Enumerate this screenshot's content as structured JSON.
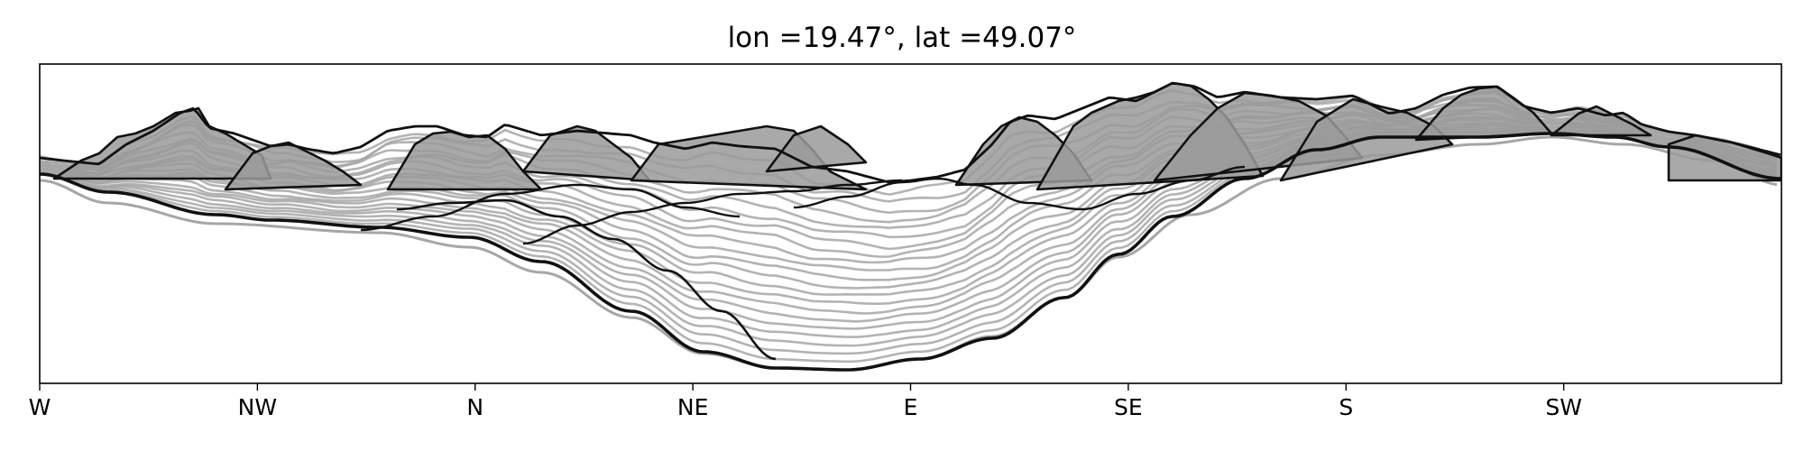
{
  "chart_data": {
    "type": "line",
    "title": "lon =19.47°, lat =49.07°",
    "xlabel": "",
    "ylabel": "",
    "x_ticks": [
      "W",
      "NW",
      "N",
      "NE",
      "E",
      "SE",
      "S",
      "SW"
    ],
    "xlim": [
      0,
      8
    ],
    "ylim": [
      0,
      1
    ],
    "grid": false,
    "legend": "none",
    "y_ticks_shown": false,
    "colors": {
      "ridge": "#111111",
      "contour": "#a6a6a6",
      "fill": "#9a9a9a",
      "axis": "#000000"
    }
  }
}
